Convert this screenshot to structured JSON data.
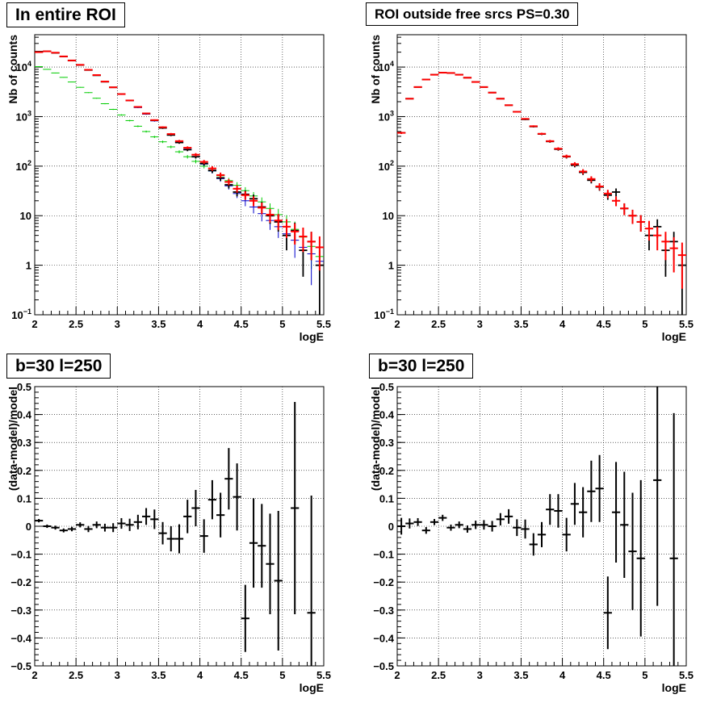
{
  "chart_data": [
    {
      "type": "scatter",
      "title": "In entire ROI",
      "xlabel": "logE",
      "ylabel": "Nb of counts",
      "yscale": "log",
      "xlim": [
        2,
        5.5
      ],
      "ylim": [
        0.1,
        45000
      ],
      "grid": true,
      "x_ticks": [
        "2",
        "2.5",
        "3",
        "3.5",
        "4",
        "4.5",
        "5",
        "5.5"
      ],
      "y_ticks": [
        {
          "v": 0.1,
          "base": "10",
          "exp": "−1"
        },
        {
          "v": 1,
          "label": "1"
        },
        {
          "v": 10,
          "label": "10"
        },
        {
          "v": 100,
          "base": "10",
          "exp": "2"
        },
        {
          "v": 1000,
          "base": "10",
          "exp": "3"
        },
        {
          "v": 10000,
          "base": "10",
          "exp": "4"
        }
      ],
      "colors": {
        "data": "#000000",
        "model": "#ff0000",
        "sources": "#0000cc",
        "background": "#00cc00"
      },
      "x": [
        2.05,
        2.15,
        2.25,
        2.35,
        2.45,
        2.55,
        2.65,
        2.75,
        2.85,
        2.95,
        3.05,
        3.15,
        3.25,
        3.35,
        3.45,
        3.55,
        3.65,
        3.75,
        3.85,
        3.95,
        4.05,
        4.15,
        4.25,
        4.35,
        4.45,
        4.55,
        4.65,
        4.75,
        4.85,
        4.95,
        5.05,
        5.15,
        5.25,
        5.35,
        5.45
      ],
      "series": [
        {
          "role": "data",
          "values": [
            20500,
            20800,
            19300,
            16300,
            13500,
            11000,
            8700,
            6800,
            5050,
            3900,
            2850,
            2120,
            1560,
            1150,
            840,
            590,
            425,
            300,
            215,
            155,
            113,
            82,
            58,
            42,
            30,
            27,
            22,
            15,
            10,
            7.5,
            4,
            5,
            2,
            3,
            1
          ]
        },
        {
          "role": "model",
          "values": [
            20000,
            20800,
            19500,
            16400,
            13600,
            11100,
            8800,
            6900,
            5100,
            3900,
            2850,
            2120,
            1570,
            1160,
            850,
            610,
            445,
            320,
            235,
            170,
            122,
            90,
            66,
            48,
            35,
            26,
            20,
            14.5,
            10.5,
            8,
            6,
            4.8,
            3.8,
            3,
            2.3
          ]
        },
        {
          "role": "sources",
          "values": [
            19800,
            20500,
            19200,
            16200,
            13400,
            11000,
            8700,
            6850,
            5050,
            3850,
            2800,
            2080,
            1520,
            1120,
            820,
            590,
            425,
            305,
            220,
            155,
            110,
            80,
            56,
            40,
            28,
            20,
            15,
            11,
            8,
            6,
            4.3,
            3.2,
            2.3,
            1.7,
            1.2
          ]
        },
        {
          "role": "background",
          "values": [
            10200,
            9000,
            7600,
            6200,
            5000,
            3900,
            3050,
            2350,
            1820,
            1400,
            1080,
            830,
            640,
            500,
            390,
            310,
            245,
            195,
            155,
            125,
            100,
            80,
            64,
            51,
            41,
            32,
            25,
            19,
            14,
            10.5,
            7.5,
            5.3,
            3.7,
            2.4,
            1.5
          ]
        }
      ]
    },
    {
      "type": "scatter",
      "title": "ROI outside free srcs PS=0.30",
      "xlabel": "logE",
      "ylabel": "Nb of counts",
      "yscale": "log",
      "xlim": [
        2,
        5.5
      ],
      "ylim": [
        0.1,
        45000
      ],
      "grid": true,
      "x_ticks": [
        "2",
        "2.5",
        "3",
        "3.5",
        "4",
        "4.5",
        "5",
        "5.5"
      ],
      "y_ticks": [
        {
          "v": 0.1,
          "base": "10",
          "exp": "−1"
        },
        {
          "v": 1,
          "label": "1"
        },
        {
          "v": 10,
          "label": "10"
        },
        {
          "v": 100,
          "base": "10",
          "exp": "2"
        },
        {
          "v": 1000,
          "base": "10",
          "exp": "3"
        },
        {
          "v": 10000,
          "base": "10",
          "exp": "4"
        }
      ],
      "colors": {
        "data": "#000000",
        "model": "#ff0000"
      },
      "x": [
        2.05,
        2.15,
        2.25,
        2.35,
        2.45,
        2.55,
        2.65,
        2.75,
        2.85,
        2.95,
        3.05,
        3.15,
        3.25,
        3.35,
        3.45,
        3.55,
        3.65,
        3.75,
        3.85,
        3.95,
        4.05,
        4.15,
        4.25,
        4.35,
        4.45,
        4.55,
        4.65,
        4.75,
        4.85,
        4.95,
        5.05,
        5.15,
        5.25,
        5.35,
        5.45
      ],
      "series": [
        {
          "role": "model",
          "values": [
            470,
            2300,
            3950,
            5600,
            7000,
            7700,
            7600,
            7000,
            6100,
            5000,
            3950,
            3050,
            2300,
            1700,
            1250,
            900,
            640,
            450,
            320,
            225,
            158,
            110,
            78,
            55,
            39,
            28,
            20,
            14,
            10,
            7.5,
            5.5,
            4,
            3,
            2.2,
            1.6
          ]
        },
        {
          "role": "data",
          "values": [
            470,
            2300,
            3950,
            5600,
            7000,
            7700,
            7600,
            7000,
            6100,
            5000,
            3950,
            3050,
            2300,
            1700,
            1250,
            880,
            630,
            445,
            315,
            220,
            155,
            105,
            75,
            52,
            38,
            26,
            30,
            14,
            10,
            7.5,
            4,
            6,
            2,
            3,
            1
          ]
        }
      ]
    },
    {
      "type": "scatter",
      "title": "b=30 l=250",
      "xlabel": "logE",
      "ylabel": "(data-model)/model",
      "xlim": [
        2,
        5.5
      ],
      "ylim": [
        -0.5,
        0.5
      ],
      "grid": true,
      "x_ticks": [
        "2",
        "2.5",
        "3",
        "3.5",
        "4",
        "4.5",
        "5",
        "5.5"
      ],
      "y_ticks": [
        "−0.5",
        "−0.4",
        "−0.3",
        "−0.2",
        "−0.1",
        "0",
        "0.1",
        "0.2",
        "0.3",
        "0.4",
        "0.5"
      ],
      "x": [
        2.05,
        2.15,
        2.25,
        2.35,
        2.45,
        2.55,
        2.65,
        2.75,
        2.85,
        2.95,
        3.05,
        3.15,
        3.25,
        3.35,
        3.45,
        3.55,
        3.65,
        3.75,
        3.85,
        3.95,
        4.05,
        4.15,
        4.25,
        4.35,
        4.45,
        4.55,
        4.65,
        4.75,
        4.85,
        4.95,
        5.15,
        5.35
      ],
      "values": [
        0.02,
        0.0,
        -0.005,
        -0.015,
        -0.01,
        0.005,
        -0.01,
        0.005,
        -0.005,
        -0.005,
        0.01,
        0.005,
        0.015,
        0.035,
        0.025,
        -0.025,
        -0.045,
        -0.045,
        0.035,
        0.065,
        -0.035,
        0.095,
        0.04,
        0.17,
        0.105,
        -0.33,
        -0.06,
        -0.07,
        -0.135,
        -0.195,
        0.065,
        -0.31
      ],
      "errors": [
        0.006,
        0.006,
        0.007,
        0.007,
        0.008,
        0.009,
        0.011,
        0.012,
        0.014,
        0.016,
        0.019,
        0.022,
        0.026,
        0.03,
        0.035,
        0.04,
        0.045,
        0.052,
        0.06,
        0.065,
        0.06,
        0.07,
        0.08,
        0.11,
        0.12,
        0.12,
        0.16,
        0.15,
        0.18,
        0.25,
        0.38,
        0.42
      ]
    },
    {
      "type": "scatter",
      "title": "b=30 l=250",
      "xlabel": "logE",
      "ylabel": "(data-model)/model",
      "xlim": [
        2,
        5.5
      ],
      "ylim": [
        -0.5,
        0.5
      ],
      "grid": true,
      "x_ticks": [
        "2",
        "2.5",
        "3",
        "3.5",
        "4",
        "4.5",
        "5",
        "5.5"
      ],
      "y_ticks": [
        "−0.5",
        "−0.4",
        "−0.3",
        "−0.2",
        "−0.1",
        "0",
        "0.1",
        "0.2",
        "0.3",
        "0.4",
        "0.5"
      ],
      "x": [
        2.05,
        2.15,
        2.25,
        2.35,
        2.45,
        2.55,
        2.65,
        2.75,
        2.85,
        2.95,
        3.05,
        3.15,
        3.25,
        3.35,
        3.45,
        3.55,
        3.65,
        3.75,
        3.85,
        3.95,
        4.05,
        4.15,
        4.25,
        4.35,
        4.45,
        4.55,
        4.65,
        4.75,
        4.85,
        4.95,
        5.15,
        5.35
      ],
      "values": [
        0.0,
        0.01,
        0.015,
        -0.015,
        0.015,
        0.03,
        -0.005,
        0.005,
        -0.01,
        0.005,
        0.005,
        0.0,
        0.025,
        0.035,
        -0.005,
        -0.01,
        -0.065,
        -0.03,
        0.06,
        0.055,
        -0.03,
        0.08,
        0.05,
        0.125,
        0.135,
        -0.31,
        0.05,
        0.005,
        -0.09,
        -0.115,
        0.165,
        -0.115
      ],
      "errors": [
        0.03,
        0.018,
        0.014,
        0.012,
        0.011,
        0.011,
        0.011,
        0.012,
        0.013,
        0.015,
        0.017,
        0.019,
        0.022,
        0.026,
        0.03,
        0.034,
        0.04,
        0.045,
        0.055,
        0.06,
        0.06,
        0.075,
        0.09,
        0.11,
        0.12,
        0.13,
        0.18,
        0.19,
        0.21,
        0.28,
        0.45,
        0.52
      ]
    }
  ]
}
